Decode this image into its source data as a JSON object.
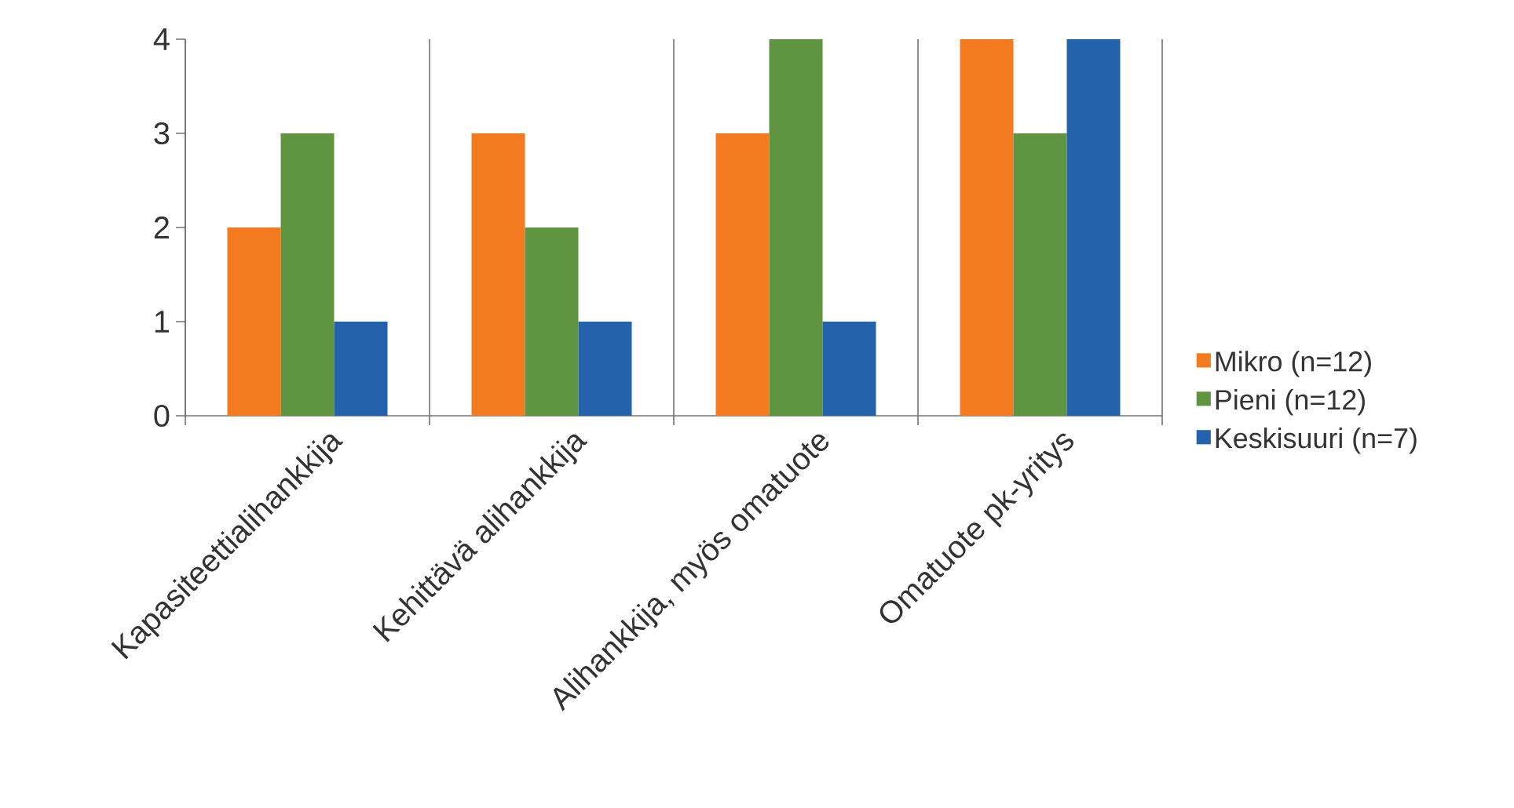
{
  "chart_data": {
    "type": "bar",
    "categories": [
      "Kapasiteettialihankkija",
      "Kehittävä alihankkija",
      "Alihankkija, myös omatuote",
      "Omatuote pk-yritys"
    ],
    "series": [
      {
        "name": "Mikro (n=12)",
        "color": "#f47a20",
        "values": [
          2,
          3,
          3,
          4
        ]
      },
      {
        "name": "Pieni (n=12)",
        "color": "#5f9441",
        "values": [
          3,
          2,
          4,
          3
        ]
      },
      {
        "name": "Keskisuuri (n=7)",
        "color": "#2463ac",
        "values": [
          1,
          1,
          1,
          4
        ]
      }
    ],
    "ylim": [
      0,
      4
    ],
    "yticks": [
      0,
      1,
      2,
      3,
      4
    ],
    "grid": "x",
    "legend": "right"
  }
}
